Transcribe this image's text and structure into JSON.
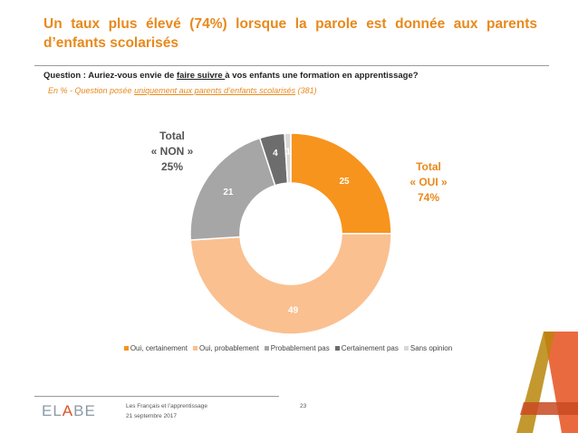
{
  "title": "Un taux plus élevé (74%) lorsque la parole est donnée aux parents d’enfants scolarisés",
  "question": {
    "prefix": "Question : Auriez-vous envie de ",
    "underlined": "faire suivre ",
    "suffix": "à vos enfants une formation en apprentissage?"
  },
  "subquestion": {
    "prefix": "En  % - Question posée ",
    "underlined": "uniquement aux parents d’enfants scolarisés",
    "suffix": " (381)"
  },
  "totals": {
    "non": {
      "line1": "Total",
      "line2": "« NON »",
      "line3": "25%"
    },
    "oui": {
      "line1": "Total",
      "line2": "« OUI »",
      "line3": "74%"
    }
  },
  "chart_data": {
    "type": "pie",
    "donut": true,
    "labels": [
      "Oui, certainement",
      "Oui, probablement",
      "Probablement pas",
      "Certainement pas",
      "Sans opinion"
    ],
    "values": [
      25,
      49,
      21,
      4,
      1
    ],
    "colors": [
      "#f7941d",
      "#fac090",
      "#a6a6a6",
      "#6d6d6d",
      "#d9d9d9"
    ],
    "legend_position": "bottom"
  },
  "footer": {
    "logo_prefix": "EL",
    "logo_a": "A",
    "logo_suffix": "BE",
    "line1": "Les Français et l’apprentissage",
    "line2": "21 septembre 2017",
    "page": "23"
  }
}
